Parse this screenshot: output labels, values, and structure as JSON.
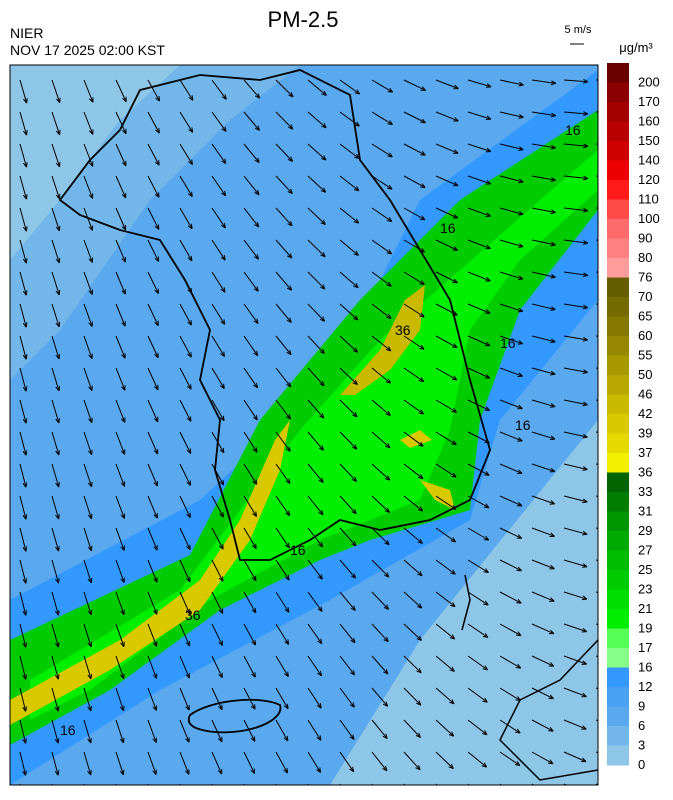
{
  "header": {
    "title": "PM-2.5",
    "source": "NIER",
    "datetime": "NOV 17 2025 02:00 KST"
  },
  "wind_scale": {
    "label": "5 m/s"
  },
  "colorbar": {
    "unit": "μg/m³",
    "levels": [
      {
        "label": "200",
        "color": "#6b0000"
      },
      {
        "label": "170",
        "color": "#8b0000"
      },
      {
        "label": "160",
        "color": "#a30000"
      },
      {
        "label": "150",
        "color": "#b80000"
      },
      {
        "label": "140",
        "color": "#d00000"
      },
      {
        "label": "120",
        "color": "#ee0000"
      },
      {
        "label": "110",
        "color": "#ff1a1a"
      },
      {
        "label": "100",
        "color": "#ff4a4a"
      },
      {
        "label": "90",
        "color": "#ff6a6a"
      },
      {
        "label": "80",
        "color": "#ff8080"
      },
      {
        "label": "76",
        "color": "#ff9c9c"
      },
      {
        "label": "70",
        "color": "#665c00"
      },
      {
        "label": "65",
        "color": "#756a00"
      },
      {
        "label": "60",
        "color": "#857800"
      },
      {
        "label": "55",
        "color": "#968700"
      },
      {
        "label": "50",
        "color": "#a89800"
      },
      {
        "label": "46",
        "color": "#b8a800"
      },
      {
        "label": "42",
        "color": "#c9b900"
      },
      {
        "label": "39",
        "color": "#d9c900"
      },
      {
        "label": "37",
        "color": "#e6d900"
      },
      {
        "label": "36",
        "color": "#f2f000"
      },
      {
        "label": "33",
        "color": "#006400"
      },
      {
        "label": "31",
        "color": "#007d00"
      },
      {
        "label": "29",
        "color": "#009600"
      },
      {
        "label": "27",
        "color": "#00aa00"
      },
      {
        "label": "25",
        "color": "#00bb00"
      },
      {
        "label": "23",
        "color": "#00cc00"
      },
      {
        "label": "21",
        "color": "#00dd00"
      },
      {
        "label": "19",
        "color": "#00ee00"
      },
      {
        "label": "17",
        "color": "#55ff55"
      },
      {
        "label": "16",
        "color": "#88ff88"
      },
      {
        "label": "12",
        "color": "#3399ff"
      },
      {
        "label": "9",
        "color": "#4aa0f2"
      },
      {
        "label": "6",
        "color": "#5aa8ee"
      },
      {
        "label": "3",
        "color": "#72b6ea"
      },
      {
        "label": "0",
        "color": "#8ec6e8"
      }
    ]
  },
  "contour_labels": [
    "16",
    "16",
    "16",
    "16",
    "16",
    "16",
    "36",
    "36"
  ]
}
